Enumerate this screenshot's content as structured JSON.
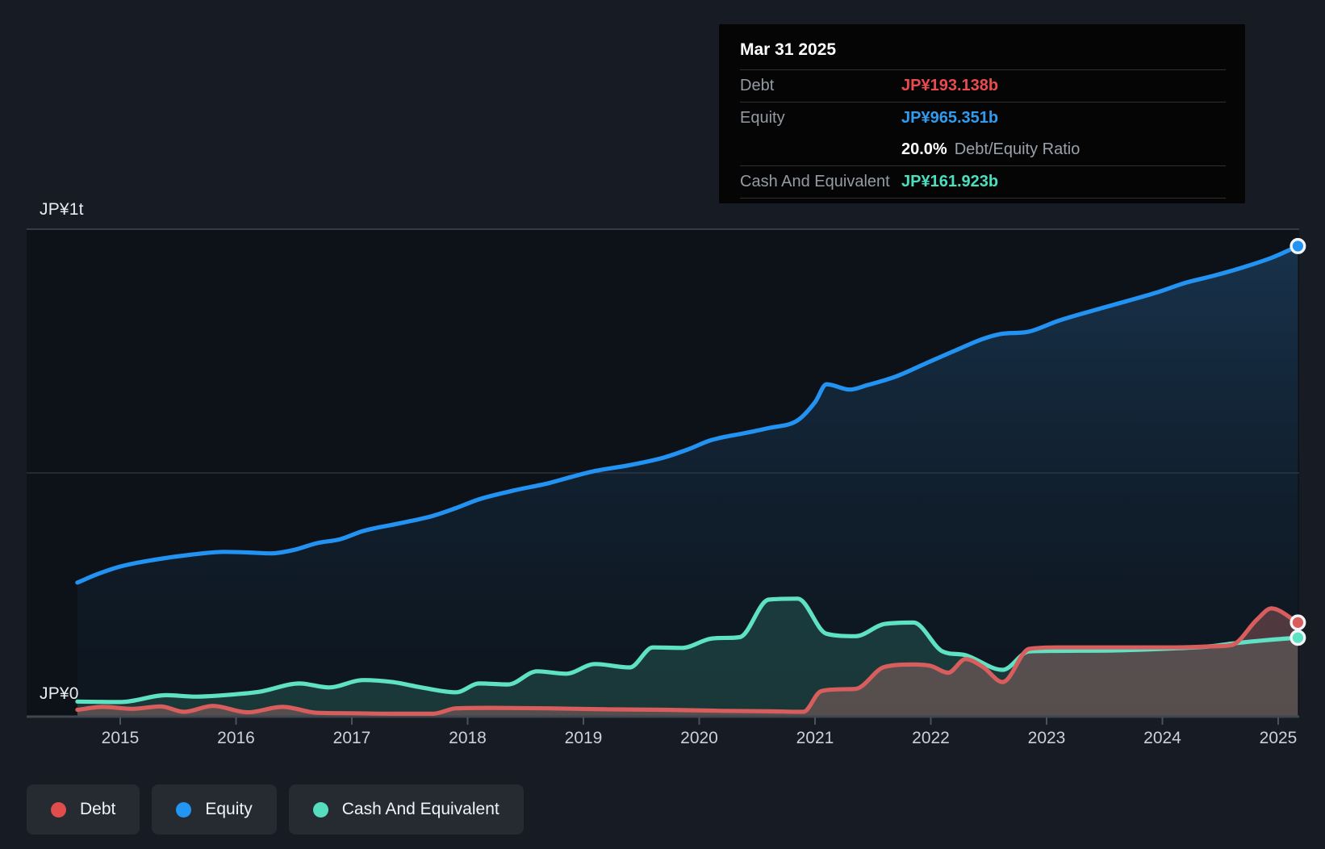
{
  "y_axis": {
    "top_label": "JP¥1t",
    "bottom_label": "JP¥0"
  },
  "x_axis": {
    "years": [
      "2015",
      "2016",
      "2017",
      "2018",
      "2019",
      "2020",
      "2021",
      "2022",
      "2023",
      "2024",
      "2025"
    ]
  },
  "tooltip": {
    "date": "Mar 31 2025",
    "rows": [
      {
        "label": "Debt",
        "value": "JP¥193.138b",
        "value_color": "#ea4b4f"
      },
      {
        "label": "Equity",
        "value": "JP¥965.351b",
        "value_color": "#2f9cf1"
      },
      {
        "label": "Cash And Equivalent",
        "value": "JP¥161.923b",
        "value_color": "#49dfbf"
      }
    ],
    "ratio_value": "20.0%",
    "ratio_label": "Debt/Equity Ratio"
  },
  "legend": {
    "items": [
      {
        "label": "Debt",
        "color": "#e14c4c"
      },
      {
        "label": "Equity",
        "color": "#2196f3"
      },
      {
        "label": "Cash And Equivalent",
        "color": "#56ddbd"
      }
    ]
  },
  "chart_data": {
    "type": "area",
    "title": "Debt to Equity history",
    "x_unit": "decimal_year",
    "x_range": [
      2014.63,
      2025.17
    ],
    "ylim_billions": [
      0,
      1000
    ],
    "y_gridlines_billions": [
      0,
      500,
      1000
    ],
    "y_gridline_labels": [
      "JP¥0",
      "",
      "JP¥1t"
    ],
    "legend_position": "bottom-left",
    "end_markers": true,
    "series": [
      {
        "name": "Debt",
        "color": "#d85d5d",
        "fill": "rgba(217,123,123,0.32)",
        "points": [
          [
            2014.63,
            14
          ],
          [
            2014.85,
            20
          ],
          [
            2015.1,
            16
          ],
          [
            2015.35,
            21
          ],
          [
            2015.55,
            10
          ],
          [
            2015.8,
            22
          ],
          [
            2016.1,
            9
          ],
          [
            2016.4,
            20
          ],
          [
            2016.7,
            8
          ],
          [
            2017.0,
            7
          ],
          [
            2017.4,
            6
          ],
          [
            2017.7,
            6
          ],
          [
            2017.9,
            17
          ],
          [
            2018.2,
            18
          ],
          [
            2018.7,
            17
          ],
          [
            2019.2,
            15
          ],
          [
            2019.7,
            14
          ],
          [
            2020.2,
            12
          ],
          [
            2020.6,
            11
          ],
          [
            2020.9,
            10
          ],
          [
            2021.05,
            52
          ],
          [
            2021.2,
            56
          ],
          [
            2021.35,
            57
          ],
          [
            2021.6,
            102
          ],
          [
            2021.85,
            107
          ],
          [
            2022.0,
            104
          ],
          [
            2022.15,
            90
          ],
          [
            2022.3,
            118
          ],
          [
            2022.45,
            102
          ],
          [
            2022.62,
            71
          ],
          [
            2022.85,
            139
          ],
          [
            2023.1,
            142
          ],
          [
            2023.6,
            142
          ],
          [
            2024.1,
            142
          ],
          [
            2024.4,
            144
          ],
          [
            2024.6,
            147
          ],
          [
            2024.82,
            200
          ],
          [
            2024.94,
            222
          ],
          [
            2025.17,
            193.138
          ]
        ]
      },
      {
        "name": "Equity",
        "color": "#2293f2",
        "fill": "gradient",
        "fill_top": "rgba(46,118,181,0.34)",
        "fill_bottom": "rgba(18,48,72,0.10)",
        "points": [
          [
            2014.63,
            275
          ],
          [
            2014.8,
            292
          ],
          [
            2015.0,
            308
          ],
          [
            2015.3,
            322
          ],
          [
            2015.6,
            332
          ],
          [
            2015.9,
            338
          ],
          [
            2016.1,
            337
          ],
          [
            2016.3,
            335
          ],
          [
            2016.5,
            342
          ],
          [
            2016.7,
            356
          ],
          [
            2016.9,
            364
          ],
          [
            2017.1,
            381
          ],
          [
            2017.4,
            396
          ],
          [
            2017.7,
            412
          ],
          [
            2017.9,
            428
          ],
          [
            2018.1,
            446
          ],
          [
            2018.4,
            464
          ],
          [
            2018.7,
            479
          ],
          [
            2018.9,
            492
          ],
          [
            2019.1,
            504
          ],
          [
            2019.4,
            516
          ],
          [
            2019.7,
            532
          ],
          [
            2019.9,
            548
          ],
          [
            2020.1,
            567
          ],
          [
            2020.4,
            582
          ],
          [
            2020.6,
            592
          ],
          [
            2020.85,
            608
          ],
          [
            2021.0,
            645
          ],
          [
            2021.1,
            682
          ],
          [
            2021.3,
            671
          ],
          [
            2021.45,
            680
          ],
          [
            2021.7,
            698
          ],
          [
            2021.95,
            724
          ],
          [
            2022.2,
            750
          ],
          [
            2022.45,
            775
          ],
          [
            2022.6,
            785
          ],
          [
            2022.85,
            790
          ],
          [
            2023.1,
            812
          ],
          [
            2023.4,
            833
          ],
          [
            2023.7,
            853
          ],
          [
            2023.95,
            870
          ],
          [
            2024.2,
            890
          ],
          [
            2024.45,
            905
          ],
          [
            2024.7,
            922
          ],
          [
            2024.95,
            942
          ],
          [
            2025.17,
            965.351
          ]
        ]
      },
      {
        "name": "Cash And Equivalent",
        "color": "#5fe2c3",
        "fill": "rgba(87,223,192,0.17)",
        "points": [
          [
            2014.63,
            31
          ],
          [
            2015.0,
            30
          ],
          [
            2015.4,
            44
          ],
          [
            2015.65,
            41
          ],
          [
            2016.0,
            46
          ],
          [
            2016.2,
            51
          ],
          [
            2016.55,
            68
          ],
          [
            2016.8,
            60
          ],
          [
            2017.1,
            75
          ],
          [
            2017.35,
            71
          ],
          [
            2017.6,
            60
          ],
          [
            2017.9,
            50
          ],
          [
            2018.1,
            68
          ],
          [
            2018.35,
            66
          ],
          [
            2018.6,
            93
          ],
          [
            2018.85,
            88
          ],
          [
            2019.1,
            108
          ],
          [
            2019.4,
            101
          ],
          [
            2019.6,
            142
          ],
          [
            2019.85,
            141
          ],
          [
            2020.1,
            160
          ],
          [
            2020.35,
            163
          ],
          [
            2020.6,
            240
          ],
          [
            2020.85,
            242
          ],
          [
            2021.1,
            170
          ],
          [
            2021.35,
            165
          ],
          [
            2021.6,
            190
          ],
          [
            2021.85,
            193
          ],
          [
            2022.1,
            134
          ],
          [
            2022.3,
            126
          ],
          [
            2022.62,
            96
          ],
          [
            2022.85,
            134
          ],
          [
            2023.1,
            135
          ],
          [
            2023.6,
            136
          ],
          [
            2024.1,
            140
          ],
          [
            2024.4,
            144
          ],
          [
            2024.6,
            150
          ],
          [
            2024.9,
            157
          ],
          [
            2025.17,
            161.923
          ]
        ]
      }
    ]
  }
}
